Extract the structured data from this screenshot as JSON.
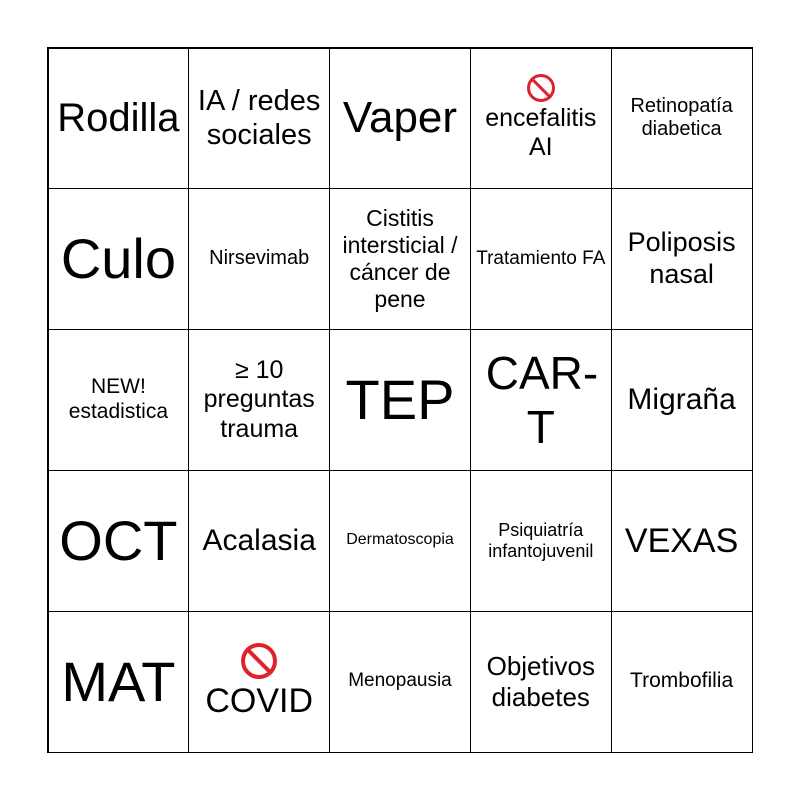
{
  "colors": {
    "border": "#000000",
    "prohibited": "#e0222b"
  },
  "cells": [
    {
      "text": "Rodilla",
      "size": 40
    },
    {
      "text": "IA / redes sociales",
      "size": 29
    },
    {
      "text": "Vaper",
      "size": 44
    },
    {
      "text": "encefalitis AI",
      "size": 25,
      "icon": "prohibited-icon"
    },
    {
      "text": "Retinopatía diabetica",
      "size": 20
    },
    {
      "text": "Culo",
      "size": 56
    },
    {
      "text": "Nirsevimab",
      "size": 20
    },
    {
      "text": "Cistitis intersticial / cáncer de pene",
      "size": 23
    },
    {
      "text": "Tratamiento FA",
      "size": 19
    },
    {
      "text": "Poliposis nasal",
      "size": 27
    },
    {
      "text": "NEW! estadistica",
      "size": 21
    },
    {
      "text": "≥ 10 preguntas trauma",
      "size": 25
    },
    {
      "text": "TEP",
      "size": 56
    },
    {
      "text": "CAR-T",
      "size": 46
    },
    {
      "text": "Migraña",
      "size": 30
    },
    {
      "text": "OCT",
      "size": 56
    },
    {
      "text": "Acalasia",
      "size": 30
    },
    {
      "text": "Dermatoscopia",
      "size": 16
    },
    {
      "text": "Psiquiatría infantojuvenil",
      "size": 18
    },
    {
      "text": "VEXAS",
      "size": 34
    },
    {
      "text": "MAT",
      "size": 56
    },
    {
      "text": "COVID",
      "size": 34,
      "icon": "prohibited-icon"
    },
    {
      "text": "Menopausia",
      "size": 19
    },
    {
      "text": "Objetivos diabetes",
      "size": 26
    },
    {
      "text": "Trombofilia",
      "size": 21
    }
  ]
}
